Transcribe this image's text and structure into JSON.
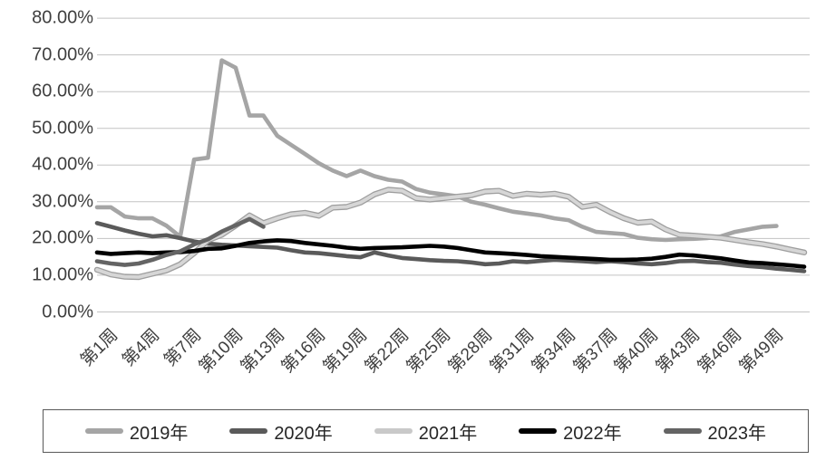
{
  "chart_data": {
    "type": "line",
    "title": "",
    "xlabel": "",
    "ylabel": "",
    "x_unit": "week",
    "x_range": [
      1,
      52
    ],
    "ylim": [
      0,
      80
    ],
    "grid": "horizontal",
    "legend_position": "bottom-boxed",
    "y_tick_labels": [
      "0.00%",
      "10.00%",
      "20.00%",
      "30.00%",
      "40.00%",
      "50.00%",
      "60.00%",
      "70.00%",
      "80.00%"
    ],
    "x_tick_weeks": [
      1,
      4,
      7,
      10,
      13,
      16,
      19,
      22,
      25,
      28,
      31,
      34,
      37,
      40,
      43,
      46,
      49
    ],
    "x_tick_labels": [
      "第1周",
      "第4周",
      "第7周",
      "第10周",
      "第13周",
      "第16周",
      "第19周",
      "第22周",
      "第25周",
      "第28周",
      "第31周",
      "第34周",
      "第37周",
      "第40周",
      "第43周",
      "第46周",
      "第49周"
    ],
    "value_format": "percent",
    "series": [
      {
        "name": "2019年",
        "color": "#a5a5a5",
        "start_week": 1,
        "values": [
          28.5,
          28.5,
          26.0,
          25.5,
          25.5,
          23.5,
          20.5,
          41.5,
          42.0,
          68.5,
          66.5,
          53.5,
          53.5,
          48.0,
          45.5,
          43.0,
          40.5,
          38.5,
          37.0,
          38.5,
          37.0,
          36.0,
          35.5,
          33.5,
          32.5,
          32.0,
          31.5,
          30.0,
          29.2,
          28.2,
          27.3,
          26.8,
          26.3,
          25.5,
          25.0,
          23.2,
          21.8,
          21.5,
          21.2,
          20.2,
          19.8,
          19.6,
          19.8,
          19.9,
          20.1,
          20.6,
          21.8,
          22.5,
          23.2,
          23.4
        ]
      },
      {
        "name": "2020年",
        "color": "#5a5a5a",
        "start_week": 1,
        "values": [
          24.2,
          23.2,
          22.2,
          21.3,
          20.6,
          20.9,
          20.1,
          19.2,
          18.6,
          18.3,
          18.1,
          17.9,
          17.7,
          17.5,
          16.8,
          16.2,
          16.0,
          15.6,
          15.2,
          14.9,
          16.2,
          15.4,
          14.7,
          14.4,
          14.1,
          13.9,
          13.8,
          13.5,
          13.0,
          13.2,
          13.8,
          13.6,
          13.9,
          14.2,
          14.0,
          13.8,
          13.6,
          13.8,
          13.6,
          13.2,
          13.0,
          13.3,
          13.8,
          13.9,
          13.6,
          13.4,
          12.9,
          12.5,
          12.2,
          11.8,
          11.5,
          11.1
        ]
      },
      {
        "name": "2021年",
        "color": "#d6d6d6",
        "outline_color": "#9e9e9e",
        "legend_color": "#c9c9c9",
        "start_week": 1,
        "values": [
          11.5,
          10.2,
          9.6,
          9.5,
          10.4,
          11.3,
          13.0,
          16.0,
          19.5,
          21.0,
          23.5,
          26.3,
          24.2,
          25.5,
          26.6,
          27.0,
          26.2,
          28.4,
          28.6,
          29.8,
          32.0,
          33.3,
          33.0,
          31.0,
          30.6,
          31.0,
          31.4,
          31.8,
          32.8,
          33.0,
          31.6,
          32.2,
          31.9,
          32.2,
          31.4,
          28.6,
          29.2,
          27.2,
          25.5,
          24.3,
          24.6,
          22.5,
          21.0,
          20.8,
          20.5,
          20.2,
          19.6,
          19.0,
          18.5,
          17.8,
          17.0,
          16.2
        ]
      },
      {
        "name": "2022年",
        "color": "#000000",
        "start_week": 1,
        "values": [
          16.2,
          15.8,
          16.0,
          16.2,
          16.0,
          16.2,
          16.3,
          16.6,
          17.2,
          17.3,
          18.0,
          18.8,
          19.2,
          19.5,
          19.3,
          18.8,
          18.4,
          18.0,
          17.5,
          17.2,
          17.4,
          17.5,
          17.6,
          17.8,
          18.0,
          17.8,
          17.4,
          16.8,
          16.2,
          16.0,
          15.8,
          15.5,
          15.2,
          15.0,
          14.8,
          14.6,
          14.4,
          14.2,
          14.2,
          14.3,
          14.5,
          15.0,
          15.6,
          15.4,
          15.0,
          14.6,
          14.0,
          13.5,
          13.3,
          13.0,
          12.7,
          12.3
        ]
      },
      {
        "name": "2023年",
        "color": "#646464",
        "start_week": 1,
        "values": [
          13.8,
          13.2,
          12.8,
          13.2,
          14.2,
          15.5,
          16.5,
          18.4,
          19.8,
          21.9,
          23.6,
          25.3,
          23.2
        ]
      }
    ]
  },
  "legend": {
    "items": [
      "2019年",
      "2020年",
      "2021年",
      "2022年",
      "2023年"
    ]
  }
}
